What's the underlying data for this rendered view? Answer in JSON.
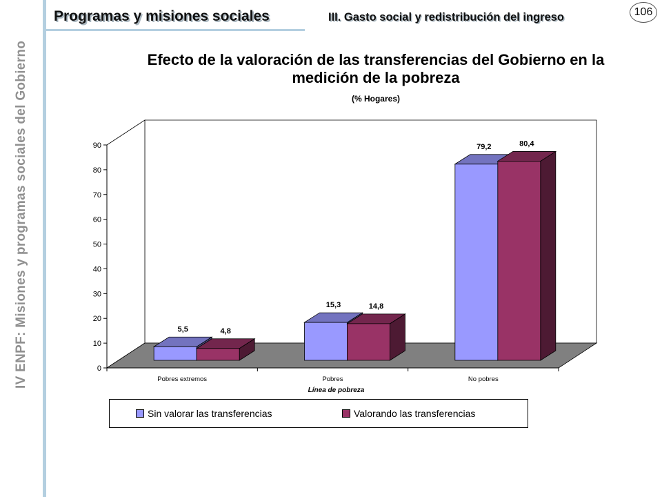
{
  "side_label": "IV ENPF:  Misiones y programas sociales del Gobierno",
  "header": {
    "title": "Programas y misiones sociales",
    "section": "III. Gasto social y redistribución del ingreso",
    "page_number": "106"
  },
  "colors": {
    "series1": "#9999ff",
    "series2": "#993366",
    "floor": "#808080"
  },
  "chart_data": {
    "type": "bar",
    "title": "Efecto de la valoración de las transferencias del Gobierno en la medición de la pobreza",
    "subtitle": "(% Hogares)",
    "xlabel": "Línea de pobreza",
    "ylabel": "",
    "ylim": [
      0,
      90
    ],
    "yticks": [
      "0",
      "10",
      "20",
      "30",
      "40",
      "50",
      "60",
      "70",
      "80",
      "90"
    ],
    "categories": [
      "Pobres extremos",
      "Pobres",
      "No pobres"
    ],
    "series": [
      {
        "name": "Sin valorar las transferencias",
        "values": [
          5.5,
          15.3,
          79.2
        ],
        "labels": [
          "5,5",
          "15,3",
          "79,2"
        ]
      },
      {
        "name": "Valorando las transferencias",
        "values": [
          4.8,
          14.8,
          80.4
        ],
        "labels": [
          "4,8",
          "14,8",
          "80,4"
        ]
      }
    ],
    "legend": "bottom",
    "grid": false
  }
}
